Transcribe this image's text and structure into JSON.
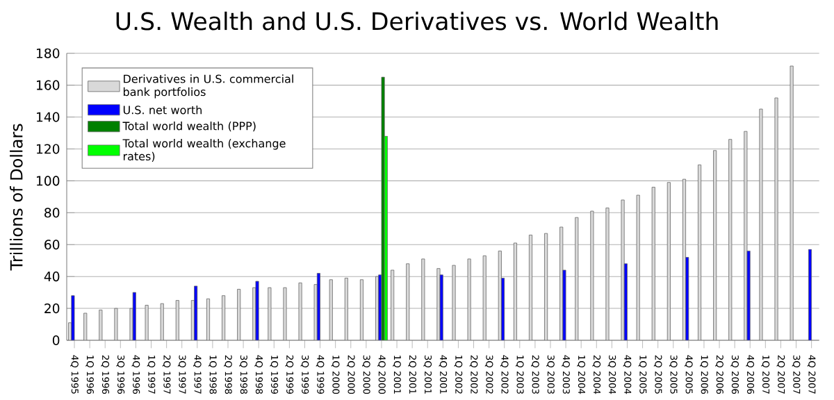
{
  "chart_data": {
    "type": "bar",
    "title": "U.S. Wealth and U.S. Derivatives vs. World Wealth",
    "ylabel": "Trillions of Dollars",
    "categories": [
      "4Q 1995",
      "1Q 1996",
      "2Q 1996",
      "3Q 1996",
      "4Q 1996",
      "1Q 1997",
      "2Q 1997",
      "3Q 1997",
      "4Q 1997",
      "1Q 1998",
      "2Q 1998",
      "3Q 1998",
      "4Q 1998",
      "1Q 1999",
      "2Q 1999",
      "3Q 1999",
      "4Q 1999",
      "1Q 2000",
      "2Q 2000",
      "3Q 2000",
      "4Q 2000",
      "1Q 2001",
      "2Q 2001",
      "3Q 2001",
      "4Q 2001",
      "1Q 2002",
      "2Q 2002",
      "3Q 2002",
      "4Q 2002",
      "1Q 2003",
      "2Q 2003",
      "3Q 2003",
      "4Q 2003",
      "1Q 2004",
      "2Q 2004",
      "3Q 2004",
      "4Q 2004",
      "1Q 2005",
      "2Q 2005",
      "3Q 2005",
      "4Q 2005",
      "1Q 2006",
      "2Q 2006",
      "3Q 2006",
      "4Q 2006",
      "1Q 2007",
      "2Q 2007",
      "3Q 2007",
      "4Q 2007"
    ],
    "series": [
      {
        "name": "Derivatives in U.S. commercial bank portfolios",
        "color": "#d9d9d9",
        "values": [
          11,
          17,
          19,
          20,
          20,
          22,
          23,
          25,
          25,
          26,
          28,
          32,
          33,
          33,
          33,
          36,
          35,
          38,
          39,
          38,
          40,
          44,
          48,
          51,
          45,
          47,
          51,
          53,
          56,
          61,
          66,
          67,
          71,
          77,
          81,
          83,
          88,
          91,
          96,
          99,
          101,
          110,
          119,
          126,
          131,
          145,
          152,
          172,
          null
        ]
      },
      {
        "name": "U.S. net worth",
        "color": "#0000ff",
        "values": [
          28,
          null,
          null,
          null,
          30,
          null,
          null,
          null,
          34,
          null,
          null,
          null,
          37,
          null,
          null,
          null,
          42,
          null,
          null,
          null,
          41,
          null,
          null,
          null,
          41,
          null,
          null,
          null,
          39,
          null,
          null,
          null,
          44,
          null,
          null,
          null,
          48,
          null,
          null,
          null,
          52,
          null,
          null,
          null,
          56,
          null,
          null,
          null,
          57
        ]
      },
      {
        "name": "Total world wealth (PPP)",
        "color": "#008000",
        "values": [
          null,
          null,
          null,
          null,
          null,
          null,
          null,
          null,
          null,
          null,
          null,
          null,
          null,
          null,
          null,
          null,
          null,
          null,
          null,
          null,
          165,
          null,
          null,
          null,
          null,
          null,
          null,
          null,
          null,
          null,
          null,
          null,
          null,
          null,
          null,
          null,
          null,
          null,
          null,
          null,
          null,
          null,
          null,
          null,
          null,
          null,
          null,
          null,
          null
        ]
      },
      {
        "name": "Total world wealth (exchange rates)",
        "color": "#00ff00",
        "values": [
          null,
          null,
          null,
          null,
          null,
          null,
          null,
          null,
          null,
          null,
          null,
          null,
          null,
          null,
          null,
          null,
          null,
          null,
          null,
          null,
          128,
          null,
          null,
          null,
          null,
          null,
          null,
          null,
          null,
          null,
          null,
          null,
          null,
          null,
          null,
          null,
          null,
          null,
          null,
          null,
          null,
          null,
          null,
          null,
          null,
          null,
          null,
          null,
          null
        ]
      }
    ],
    "ylim": [
      0,
      180
    ],
    "yticks": [
      0,
      20,
      40,
      60,
      80,
      100,
      120,
      140,
      160,
      180
    ],
    "grid": "y",
    "legend": "top left"
  }
}
